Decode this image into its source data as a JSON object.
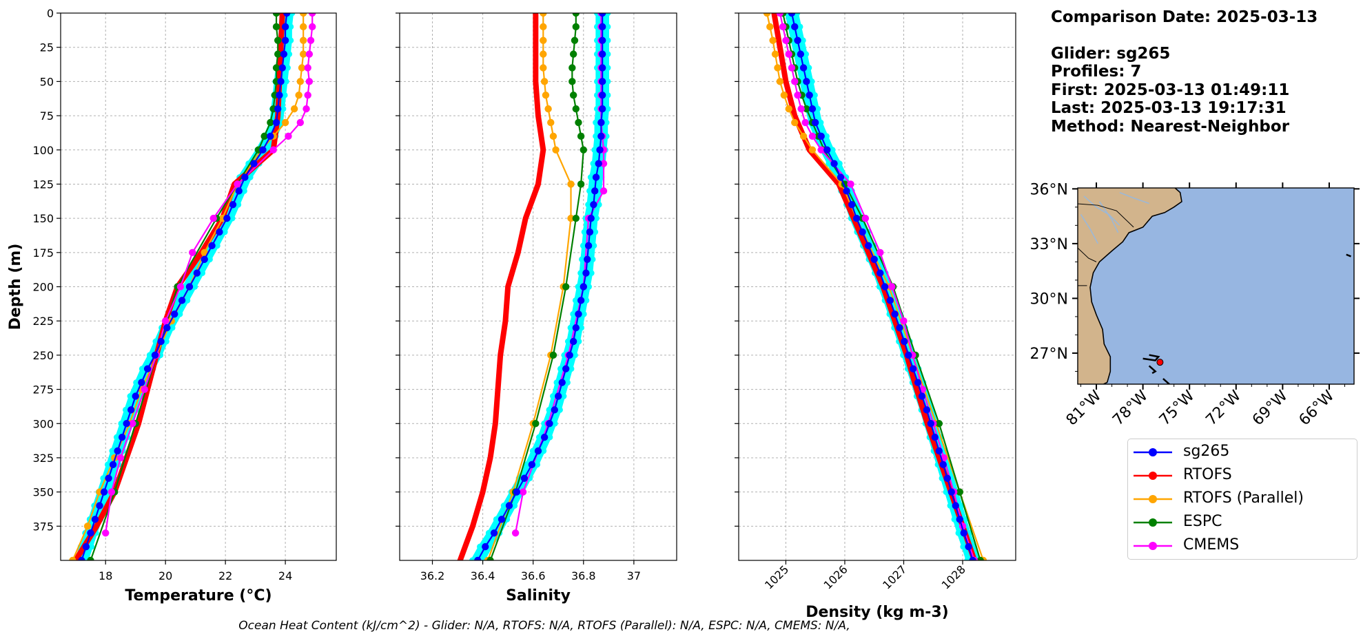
{
  "info_panel": {
    "comparison_date": "Comparison Date: 2025-03-13",
    "glider": "Glider: sg265",
    "profiles": "Profiles: 7",
    "first": "First: 2025-03-13 01:49:11",
    "last": "Last: 2025-03-13 19:17:31",
    "method": "Method: Nearest-Neighbor"
  },
  "footer": "Ocean Heat Content (kJ/cm^2) - Glider: N/A,  RTOFS: N/A,  RTOFS (Parallel): N/A,  ESPC: N/A,  CMEMS: N/A,",
  "colors": {
    "sg265": "#0000ff",
    "rtofs": "#ff0000",
    "rtofs_parallel": "#ffa500",
    "espc": "#008000",
    "cmems": "#ff00ff",
    "glider_raw": "#00ffff",
    "grid": "#b0b0b0",
    "ocean": "#97b6e1",
    "land": "#d2b48c"
  },
  "legend": [
    {
      "name": "sg265",
      "color": "#0000ff"
    },
    {
      "name": "RTOFS",
      "color": "#ff0000"
    },
    {
      "name": "RTOFS (Parallel)",
      "color": "#ffa500"
    },
    {
      "name": "ESPC",
      "color": "#008000"
    },
    {
      "name": "CMEMS",
      "color": "#ff00ff"
    }
  ],
  "map": {
    "lat_ticks": [
      "36°N",
      "33°N",
      "30°N",
      "27°N"
    ],
    "lat_values": [
      36,
      33,
      30,
      27
    ],
    "lon_ticks": [
      "81°W",
      "78°W",
      "75°W",
      "72°W",
      "69°W",
      "66°W"
    ],
    "lon_values": [
      -81,
      -78,
      -75,
      -72,
      -69,
      -66
    ],
    "extent": {
      "lon_min": -82.2,
      "lon_max": -64.4,
      "lat_min": 25.3,
      "lat_max": 36.05
    },
    "marker": {
      "lon": -76.9,
      "lat": 26.5,
      "color": "#ff0000"
    }
  },
  "chart_data": [
    {
      "type": "line",
      "title": "",
      "xlabel": "Temperature (°C)",
      "ylabel": "Depth (m)",
      "xlim": [
        16.5,
        25.7
      ],
      "ylim": [
        400,
        0
      ],
      "xticks": [
        18,
        20,
        22,
        24
      ],
      "yticks": [
        0,
        25,
        50,
        75,
        100,
        125,
        150,
        175,
        200,
        225,
        250,
        275,
        300,
        325,
        350,
        375
      ],
      "grid": true,
      "series": [
        {
          "name": "sg265",
          "style": "marker-line",
          "depth": [
            0,
            10,
            20,
            30,
            40,
            50,
            60,
            70,
            80,
            90,
            100,
            110,
            120,
            130,
            140,
            150,
            160,
            170,
            180,
            190,
            200,
            210,
            220,
            230,
            240,
            250,
            260,
            270,
            280,
            290,
            300,
            310,
            320,
            330,
            340,
            350,
            360,
            370,
            380,
            390,
            400
          ],
          "values": [
            24.05,
            24.0,
            24.0,
            23.95,
            23.9,
            23.85,
            23.8,
            23.75,
            23.7,
            23.5,
            23.25,
            22.95,
            22.65,
            22.45,
            22.25,
            22.05,
            21.8,
            21.55,
            21.3,
            21.05,
            20.8,
            20.55,
            20.3,
            20.05,
            19.85,
            19.65,
            19.4,
            19.2,
            19.0,
            18.85,
            18.7,
            18.55,
            18.4,
            18.25,
            18.1,
            17.95,
            17.8,
            17.65,
            17.5,
            17.35,
            17.2
          ]
        },
        {
          "name": "RTOFS",
          "style": "thick-line",
          "depth": [
            0,
            25,
            50,
            75,
            100,
            125,
            150,
            175,
            200,
            225,
            250,
            275,
            300,
            325,
            350,
            375,
            400
          ],
          "values": [
            23.9,
            23.85,
            23.8,
            23.75,
            23.6,
            22.3,
            21.9,
            21.2,
            20.4,
            20.0,
            19.7,
            19.4,
            19.1,
            18.7,
            18.3,
            17.7,
            17.0
          ]
        },
        {
          "name": "RTOFS (Parallel)",
          "style": "marker-line",
          "depth": [
            0,
            10,
            20,
            30,
            40,
            50,
            60,
            70,
            80,
            90,
            100,
            125,
            150,
            175,
            200,
            225,
            250,
            275,
            300,
            325,
            350,
            375,
            400
          ],
          "values": [
            24.6,
            24.6,
            24.6,
            24.6,
            24.55,
            24.5,
            24.45,
            24.3,
            24.0,
            23.6,
            23.2,
            22.4,
            21.9,
            21.3,
            20.8,
            20.2,
            19.7,
            19.2,
            18.8,
            18.3,
            17.8,
            17.4,
            16.9
          ]
        },
        {
          "name": "ESPC",
          "style": "marker-line",
          "depth": [
            0,
            10,
            20,
            30,
            40,
            50,
            60,
            70,
            80,
            90,
            100,
            125,
            150,
            200,
            250,
            300,
            350,
            400
          ],
          "values": [
            23.7,
            23.7,
            23.75,
            23.75,
            23.7,
            23.7,
            23.65,
            23.6,
            23.5,
            23.3,
            23.1,
            22.4,
            21.7,
            20.4,
            19.7,
            19.0,
            18.3,
            17.5
          ]
        },
        {
          "name": "CMEMS",
          "style": "marker-line",
          "depth": [
            0,
            10,
            20,
            30,
            40,
            50,
            60,
            70,
            80,
            90,
            100,
            125,
            150,
            175,
            200,
            225,
            250,
            275,
            300,
            325,
            350,
            380
          ],
          "values": [
            24.9,
            24.9,
            24.85,
            24.8,
            24.75,
            24.8,
            24.75,
            24.7,
            24.5,
            24.1,
            23.6,
            22.4,
            21.6,
            20.9,
            20.5,
            20.0,
            19.7,
            19.3,
            18.9,
            18.5,
            18.2,
            18.0
          ]
        }
      ]
    },
    {
      "type": "line",
      "title": "",
      "xlabel": "Salinity",
      "ylabel": "",
      "xlim": [
        36.07,
        37.17
      ],
      "ylim": [
        400,
        0
      ],
      "xticks": [
        36.2,
        36.4,
        36.6,
        36.8,
        37.0
      ],
      "grid": true,
      "series": [
        {
          "name": "sg265",
          "style": "marker-line",
          "depth": [
            0,
            10,
            20,
            30,
            40,
            50,
            60,
            70,
            80,
            90,
            100,
            110,
            120,
            130,
            140,
            150,
            160,
            170,
            180,
            190,
            200,
            210,
            220,
            230,
            240,
            250,
            260,
            270,
            280,
            290,
            300,
            310,
            320,
            330,
            340,
            350,
            360,
            370,
            380,
            390,
            400
          ],
          "values": [
            36.875,
            36.875,
            36.875,
            36.875,
            36.875,
            36.875,
            36.875,
            36.875,
            36.87,
            36.87,
            36.865,
            36.86,
            36.85,
            36.845,
            36.84,
            36.83,
            36.825,
            36.82,
            36.815,
            36.81,
            36.8,
            36.79,
            36.78,
            36.77,
            36.76,
            36.745,
            36.73,
            36.715,
            36.7,
            36.685,
            36.665,
            36.645,
            36.62,
            36.595,
            36.565,
            36.535,
            36.505,
            36.475,
            36.445,
            36.41,
            36.38
          ]
        },
        {
          "name": "RTOFS",
          "style": "thick-line",
          "depth": [
            0,
            25,
            50,
            75,
            100,
            125,
            150,
            175,
            200,
            225,
            250,
            275,
            300,
            325,
            350,
            375,
            400
          ],
          "values": [
            36.61,
            36.61,
            36.61,
            36.62,
            36.64,
            36.62,
            36.57,
            36.54,
            36.5,
            36.49,
            36.47,
            36.46,
            36.45,
            36.43,
            36.4,
            36.36,
            36.31
          ]
        },
        {
          "name": "RTOFS (Parallel)",
          "style": "marker-line",
          "depth": [
            0,
            10,
            20,
            30,
            40,
            50,
            60,
            70,
            80,
            90,
            100,
            125,
            150,
            200,
            250,
            300,
            350,
            400
          ],
          "values": [
            36.64,
            36.64,
            36.64,
            36.64,
            36.64,
            36.645,
            36.65,
            36.66,
            36.67,
            36.68,
            36.69,
            36.75,
            36.75,
            36.72,
            36.67,
            36.6,
            36.52,
            36.42
          ]
        },
        {
          "name": "ESPC",
          "style": "marker-line",
          "depth": [
            0,
            10,
            20,
            30,
            40,
            50,
            60,
            70,
            80,
            90,
            100,
            125,
            150,
            200,
            250,
            300,
            350,
            400
          ],
          "values": [
            36.77,
            36.77,
            36.765,
            36.76,
            36.755,
            36.755,
            36.76,
            36.77,
            36.78,
            36.79,
            36.8,
            36.79,
            36.77,
            36.73,
            36.68,
            36.61,
            36.53,
            36.43
          ]
        },
        {
          "name": "CMEMS",
          "style": "marker-line",
          "depth": [
            0,
            10,
            20,
            30,
            40,
            50,
            60,
            70,
            80,
            90,
            100,
            110,
            130,
            150,
            200,
            250,
            300,
            350,
            380
          ],
          "values": [
            36.87,
            36.87,
            36.87,
            36.87,
            36.87,
            36.87,
            36.87,
            36.87,
            36.87,
            36.875,
            36.88,
            36.88,
            36.88,
            36.82,
            36.8,
            36.74,
            36.66,
            36.56,
            36.53
          ]
        }
      ]
    },
    {
      "type": "line",
      "title": "",
      "xlabel": "Density (kg m-3)",
      "ylabel": "",
      "xlim": [
        1024.2,
        1028.9
      ],
      "ylim": [
        400,
        0
      ],
      "xticks": [
        1025,
        1026,
        1027,
        1028
      ],
      "grid": true,
      "series": [
        {
          "name": "sg265",
          "style": "marker-line",
          "depth": [
            0,
            10,
            20,
            30,
            40,
            50,
            60,
            70,
            80,
            90,
            100,
            110,
            120,
            130,
            140,
            150,
            160,
            170,
            180,
            190,
            200,
            210,
            220,
            230,
            240,
            250,
            260,
            270,
            280,
            290,
            300,
            310,
            320,
            330,
            340,
            350,
            360,
            370,
            380,
            390,
            400
          ],
          "values": [
            1025.1,
            1025.15,
            1025.2,
            1025.25,
            1025.3,
            1025.35,
            1025.4,
            1025.45,
            1025.5,
            1025.6,
            1025.7,
            1025.82,
            1025.93,
            1026.03,
            1026.12,
            1026.2,
            1026.3,
            1026.4,
            1026.5,
            1026.6,
            1026.68,
            1026.77,
            1026.85,
            1026.93,
            1027.01,
            1027.08,
            1027.16,
            1027.24,
            1027.31,
            1027.39,
            1027.46,
            1027.53,
            1027.6,
            1027.67,
            1027.74,
            1027.81,
            1027.88,
            1027.95,
            1028.02,
            1028.1,
            1028.17
          ]
        },
        {
          "name": "RTOFS",
          "style": "thick-line",
          "depth": [
            0,
            25,
            50,
            75,
            100,
            125,
            150,
            175,
            200,
            225,
            250,
            275,
            300,
            325,
            350,
            375,
            400
          ],
          "values": [
            1024.8,
            1024.9,
            1025.0,
            1025.15,
            1025.4,
            1025.9,
            1026.15,
            1026.4,
            1026.65,
            1026.85,
            1027.05,
            1027.22,
            1027.4,
            1027.6,
            1027.8,
            1028.0,
            1028.2
          ]
        },
        {
          "name": "RTOFS (Parallel)",
          "style": "marker-line",
          "depth": [
            0,
            10,
            20,
            30,
            40,
            50,
            60,
            70,
            80,
            90,
            100,
            125,
            150,
            200,
            250,
            300,
            350,
            400
          ],
          "values": [
            1024.68,
            1024.73,
            1024.78,
            1024.82,
            1024.86,
            1024.9,
            1024.97,
            1025.05,
            1025.15,
            1025.3,
            1025.45,
            1025.95,
            1026.2,
            1026.75,
            1027.15,
            1027.55,
            1027.95,
            1028.35
          ]
        },
        {
          "name": "ESPC",
          "style": "marker-line",
          "depth": [
            0,
            10,
            20,
            30,
            40,
            50,
            60,
            70,
            80,
            90,
            100,
            125,
            150,
            200,
            250,
            300,
            350,
            400
          ],
          "values": [
            1024.95,
            1025.0,
            1025.05,
            1025.1,
            1025.15,
            1025.2,
            1025.27,
            1025.35,
            1025.45,
            1025.55,
            1025.65,
            1026.0,
            1026.3,
            1026.82,
            1027.2,
            1027.6,
            1027.95,
            1028.3
          ]
        },
        {
          "name": "CMEMS",
          "style": "marker-line",
          "depth": [
            0,
            10,
            20,
            30,
            40,
            50,
            60,
            70,
            80,
            90,
            100,
            125,
            150,
            175,
            200,
            225,
            250,
            275,
            300,
            325,
            350,
            375,
            400
          ],
          "values": [
            1024.9,
            1024.95,
            1025.0,
            1025.05,
            1025.1,
            1025.15,
            1025.2,
            1025.26,
            1025.33,
            1025.45,
            1025.6,
            1026.1,
            1026.35,
            1026.6,
            1026.8,
            1027.0,
            1027.15,
            1027.32,
            1027.5,
            1027.68,
            1027.85,
            1028.0,
            1028.2
          ]
        }
      ]
    }
  ]
}
